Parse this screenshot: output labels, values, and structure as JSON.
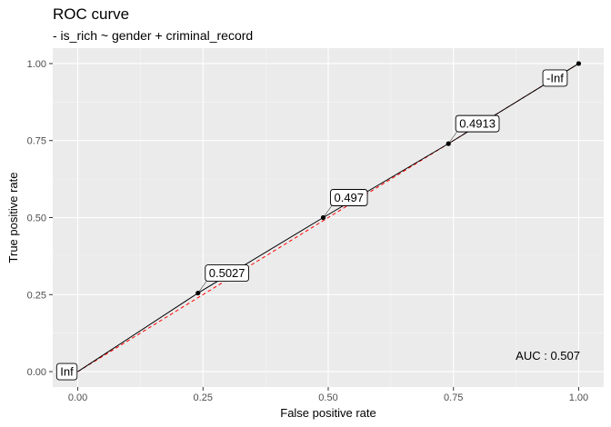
{
  "chart_data": {
    "type": "line",
    "title": "ROC curve",
    "subtitle": "- is_rich ~ gender + criminal_record",
    "xlabel": "False positive rate",
    "ylabel": "True positive rate",
    "xlim": [
      -0.05,
      1.05
    ],
    "ylim": [
      -0.05,
      1.05
    ],
    "xticks": [
      0.0,
      0.25,
      0.5,
      0.75,
      1.0
    ],
    "yticks": [
      0.0,
      0.25,
      0.5,
      0.75,
      1.0
    ],
    "xtick_labels": [
      "0.00",
      "0.25",
      "0.50",
      "0.75",
      "1.00"
    ],
    "ytick_labels": [
      "0.00",
      "0.25",
      "0.50",
      "0.75",
      "1.00"
    ],
    "grid": true,
    "series": [
      {
        "x": [
          0.0,
          0.24,
          0.49,
          0.74,
          1.0
        ],
        "y": [
          0.0,
          0.255,
          0.5,
          0.74,
          1.0
        ],
        "color": "#000000"
      }
    ],
    "reference_line": {
      "x": [
        0,
        1
      ],
      "y": [
        0,
        1
      ],
      "color": "#ff0000",
      "style": "dashed"
    },
    "point_labels": [
      "Inf",
      "0.5027",
      "0.497",
      "0.4913",
      "-Inf"
    ],
    "annotation": "AUC : 0.507",
    "colors": {
      "panel": "#ebebeb",
      "grid_major": "#ffffff",
      "curve": "#000000",
      "reference": "#ff0000"
    }
  }
}
